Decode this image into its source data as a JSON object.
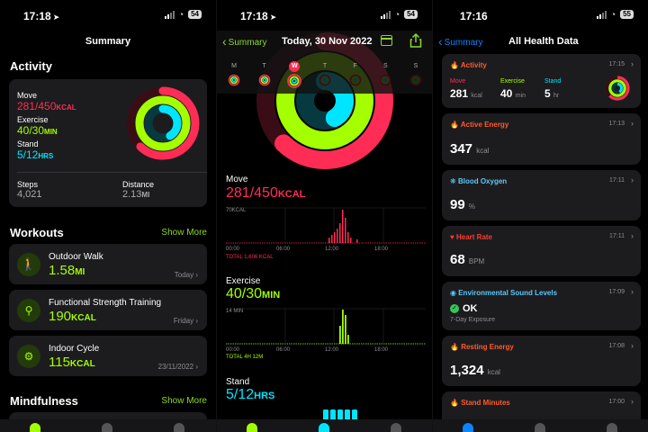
{
  "panel1": {
    "status_time": "17:18",
    "battery": "54",
    "title": "Summary",
    "activity_header": "Activity",
    "activity": {
      "move_label": "Move",
      "move_value": "281/450",
      "move_unit": "KCAL",
      "exercise_label": "Exercise",
      "exercise_value": "40/30",
      "exercise_unit": "MIN",
      "stand_label": "Stand",
      "stand_value": "5/12",
      "stand_unit": "HRS",
      "steps_label": "Steps",
      "steps_value": "4,021",
      "distance_label": "Distance",
      "distance_value": "2.13",
      "distance_unit": "MI"
    },
    "workouts_header": "Workouts",
    "show_more": "Show More",
    "workouts": [
      {
        "name": "Outdoor Walk",
        "value": "1.58",
        "unit": "MI",
        "date": "Today"
      },
      {
        "name": "Functional Strength Training",
        "value": "190",
        "unit": "KCAL",
        "date": "Friday"
      },
      {
        "name": "Indoor Cycle",
        "value": "115",
        "unit": "KCAL",
        "date": "23/11/2022"
      }
    ],
    "mindfulness_header": "Mindfulness"
  },
  "panel2": {
    "status_time": "17:18",
    "battery": "54",
    "back_label": "Summary",
    "date_title": "Today, 30 Nov 2022",
    "week_days": [
      "M",
      "T",
      "W",
      "T",
      "F",
      "S",
      "S"
    ],
    "move": {
      "label": "Move",
      "value": "281/450",
      "unit": "KCAL",
      "ymax_label": "70KCAL",
      "total": "TOTAL 1,606 KCAL"
    },
    "exercise": {
      "label": "Exercise",
      "value": "40/30",
      "unit": "MIN",
      "ymax_label": "14 MIN",
      "total": "TOTAL 4H 12M"
    },
    "stand": {
      "label": "Stand",
      "value": "5/12",
      "unit": "HRS"
    },
    "x_ticks": [
      "00:00",
      "06:00",
      "12:00",
      "18:00"
    ]
  },
  "panel3": {
    "status_time": "17:16",
    "battery": "55",
    "back_label": "Summary",
    "title": "All Health Data",
    "cards": {
      "activity": {
        "title": "Activity",
        "time": "17:15",
        "move_label": "Move",
        "move_value": "281",
        "move_unit": "kcal",
        "exercise_label": "Exercise",
        "exercise_value": "40",
        "exercise_unit": "min",
        "stand_label": "Stand",
        "stand_value": "5",
        "stand_unit": "hr"
      },
      "active_energy": {
        "title": "Active Energy",
        "time": "17:13",
        "value": "347",
        "unit": "kcal"
      },
      "blood_oxygen": {
        "title": "Blood Oxygen",
        "time": "17:11",
        "value": "99",
        "unit": "%"
      },
      "heart_rate": {
        "title": "Heart Rate",
        "time": "17:11",
        "value": "68",
        "unit": "BPM"
      },
      "sound": {
        "title": "Environmental Sound Levels",
        "time": "17:09",
        "value": "OK",
        "sub": "7-Day Exposure"
      },
      "resting_energy": {
        "title": "Resting Energy",
        "time": "17:08",
        "value": "1,324",
        "unit": "kcal"
      },
      "stand_minutes": {
        "title": "Stand Minutes",
        "time": "17:00"
      }
    }
  },
  "colors": {
    "move": "#ff2d55",
    "exercise": "#a4ff00",
    "stand": "#00e5ff",
    "accent_green": "#8ad927",
    "accent_blue": "#0a84ff"
  }
}
